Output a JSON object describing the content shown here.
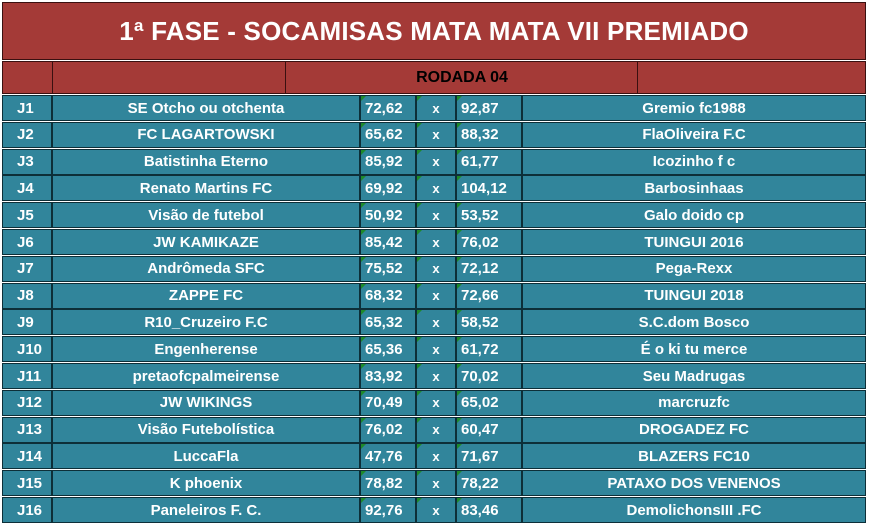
{
  "title": "1ª FASE - SOCAMISAS MATA MATA VII PREMIADO",
  "round_label": "RODADA 04",
  "vs_label": "x",
  "colors": {
    "header_bg": "#a43a37",
    "row_bg": "#31859b",
    "text": "#ffffff"
  },
  "matches": [
    {
      "id": "J1",
      "home": "SE Otcho ou otchenta",
      "home_score": "72,62",
      "away_score": "92,87",
      "away": "Gremio fc1988"
    },
    {
      "id": "J2",
      "home": "FC LAGARTOWSKI",
      "home_score": "65,62",
      "away_score": "88,32",
      "away": "FlaOliveira F.C"
    },
    {
      "id": "J3",
      "home": "Batistinha Eterno",
      "home_score": "85,92",
      "away_score": "61,77",
      "away": "Icozinho f c"
    },
    {
      "id": "J4",
      "home": "Renato Martins FC",
      "home_score": "69,92",
      "away_score": "104,12",
      "away": "Barbosinhaas"
    },
    {
      "id": "J5",
      "home": "Visão de futebol",
      "home_score": "50,92",
      "away_score": "53,52",
      "away": "Galo doido cp"
    },
    {
      "id": "J6",
      "home": "JW KAMIKAZE",
      "home_score": "85,42",
      "away_score": "76,02",
      "away": "TUINGUI 2016"
    },
    {
      "id": "J7",
      "home": "Andrômeda SFC",
      "home_score": "75,52",
      "away_score": "72,12",
      "away": "Pega-Rexx"
    },
    {
      "id": "J8",
      "home": "ZAPPE FC",
      "home_score": "68,32",
      "away_score": "72,66",
      "away": "TUINGUI 2018"
    },
    {
      "id": "J9",
      "home": "R10_Cruzeiro F.C",
      "home_score": "65,32",
      "away_score": "58,52",
      "away": "S.C.dom Bosco"
    },
    {
      "id": "J10",
      "home": "Engenherense",
      "home_score": "65,36",
      "away_score": "61,72",
      "away": "É o ki tu merce"
    },
    {
      "id": "J11",
      "home": "pretaofcpalmeirense",
      "home_score": "83,92",
      "away_score": "70,02",
      "away": "Seu Madrugas"
    },
    {
      "id": "J12",
      "home": "JW WIKINGS",
      "home_score": "70,49",
      "away_score": "65,02",
      "away": "marcruzfc"
    },
    {
      "id": "J13",
      "home": "Visão Futebolística",
      "home_score": "76,02",
      "away_score": "60,47",
      "away": "DROGADEZ FC"
    },
    {
      "id": "J14",
      "home": "LuccaFla",
      "home_score": "47,76",
      "away_score": "71,67",
      "away": "BLAZERS FC10"
    },
    {
      "id": "J15",
      "home": "K phoenix",
      "home_score": "78,82",
      "away_score": "78,22",
      "away": "PATAXO DOS VENENOS"
    },
    {
      "id": "J16",
      "home": "Paneleiros F. C.",
      "home_score": "92,76",
      "away_score": "83,46",
      "away": "DemolichonsIII .FC"
    }
  ]
}
